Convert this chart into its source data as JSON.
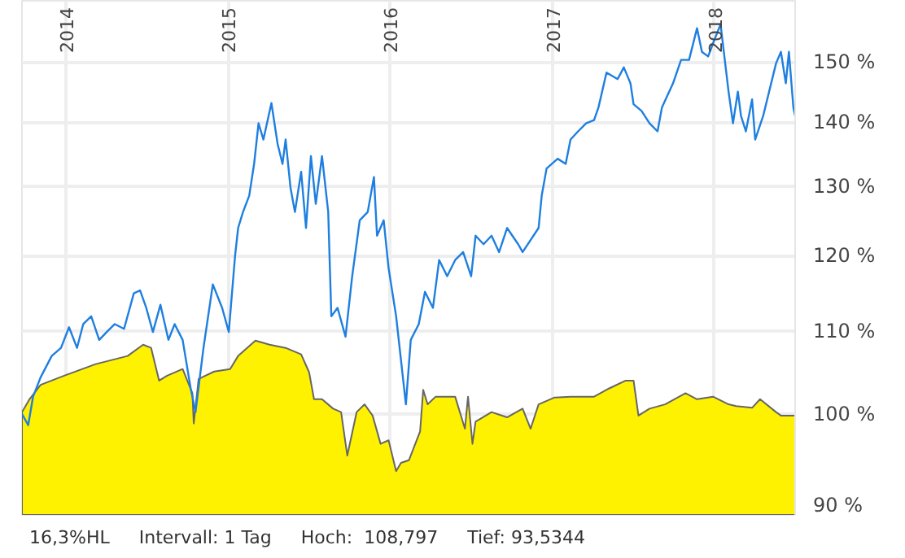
{
  "chart_data": {
    "type": "area",
    "xlim": [
      "2013-09-24",
      "2018-07-02"
    ],
    "xticks": [
      "2014",
      "2015",
      "2016",
      "2017",
      "2018"
    ],
    "ylim": [
      89,
      161
    ],
    "log": true,
    "grid": true,
    "yticks": [
      {
        "value": 90,
        "label": "90 %"
      },
      {
        "value": 100,
        "label": "100 %"
      },
      {
        "value": 110,
        "label": "110 %"
      },
      {
        "value": 120,
        "label": "120 %"
      },
      {
        "value": 130,
        "label": "130 %"
      },
      {
        "value": 140,
        "label": "140 %"
      },
      {
        "value": 150,
        "label": "150 %"
      }
    ],
    "series": [
      {
        "color": "#fff200",
        "x": [
          "2013-09-24",
          "2013-10-11",
          "2013-11-05",
          "2013-12-28",
          "2014-03-09",
          "2014-05-20",
          "2014-06-24",
          "2014-07-12",
          "2014-07-30",
          "2014-08-17",
          "2014-09-21",
          "2014-10-13",
          "2014-10-16",
          "2014-10-27",
          "2014-12-01",
          "2015-01-06",
          "2015-01-24",
          "2015-03-04",
          "2015-04-05",
          "2015-05-11",
          "2015-06-15",
          "2015-07-03",
          "2015-07-14",
          "2015-08-01",
          "2015-08-26",
          "2015-09-13",
          "2015-09-27",
          "2015-10-18",
          "2015-11-05",
          "2015-11-23",
          "2015-12-11",
          "2015-12-29",
          "2016-01-15",
          "2016-01-26",
          "2016-02-13",
          "2016-03-09",
          "2016-03-16",
          "2016-03-26",
          "2016-04-13",
          "2016-05-27",
          "2016-06-18",
          "2016-06-25",
          "2016-07-05",
          "2016-07-12",
          "2016-08-17",
          "2016-09-21",
          "2016-10-26",
          "2016-11-13",
          "2016-12-01",
          "2017-01-06",
          "2017-02-11",
          "2017-04-05",
          "2017-05-10",
          "2017-06-15",
          "2017-07-03",
          "2017-07-14",
          "2017-08-08",
          "2017-09-12",
          "2017-10-28",
          "2017-11-23",
          "2017-12-29",
          "2018-02-02",
          "2018-02-19",
          "2018-03-27",
          "2018-04-14",
          "2018-05-20",
          "2018-05-31",
          "2018-07-02"
        ],
        "values": [
          100.2,
          101.7,
          103.4,
          104.5,
          105.9,
          106.9,
          108.3,
          107.9,
          103.9,
          104.5,
          105.3,
          102.4,
          98.9,
          104.1,
          105,
          105.3,
          106.9,
          108.8,
          108.3,
          107.9,
          107.1,
          104.9,
          101.7,
          101.7,
          100.6,
          100.2,
          95.3,
          100.2,
          101.1,
          99.8,
          96.6,
          97,
          93.6,
          94.5,
          94.8,
          98,
          102.8,
          101.1,
          102,
          102,
          98.3,
          102,
          96.6,
          99.1,
          100.2,
          99.6,
          100.6,
          98.3,
          101.1,
          101.9,
          102,
          102,
          103,
          103.9,
          103.9,
          99.8,
          100.6,
          101.1,
          102.4,
          101.7,
          102,
          101.1,
          100.9,
          100.7,
          101.7,
          100.2,
          99.8,
          99.8
        ]
      },
      {
        "type": "line",
        "color": "#1e7fe0",
        "x": [
          "2013-09-24",
          "2013-10-08",
          "2013-10-19",
          "2013-11-05",
          "2013-11-30",
          "2013-12-21",
          "2014-01-08",
          "2014-01-26",
          "2014-02-09",
          "2014-02-27",
          "2014-03-17",
          "2014-04-03",
          "2014-04-21",
          "2014-05-12",
          "2014-06-03",
          "2014-06-17",
          "2014-07-01",
          "2014-07-16",
          "2014-08-02",
          "2014-08-20",
          "2014-09-03",
          "2014-09-21",
          "2014-10-09",
          "2014-10-20",
          "2014-11-07",
          "2014-11-28",
          "2014-12-19",
          "2015-01-03",
          "2015-01-17",
          "2015-01-24",
          "2015-02-04",
          "2015-02-18",
          "2015-03-01",
          "2015-03-11",
          "2015-03-22",
          "2015-04-09",
          "2015-04-23",
          "2015-05-04",
          "2015-05-11",
          "2015-05-22",
          "2015-06-01",
          "2015-06-15",
          "2015-06-26",
          "2015-07-07",
          "2015-07-18",
          "2015-08-01",
          "2015-08-15",
          "2015-08-22",
          "2015-09-05",
          "2015-09-23",
          "2015-10-08",
          "2015-10-25",
          "2015-11-12",
          "2015-11-26",
          "2015-12-03",
          "2015-12-18",
          "2015-12-29",
          "2016-01-15",
          "2016-02-06",
          "2016-02-17",
          "2016-03-06",
          "2016-03-20",
          "2016-04-07",
          "2016-04-21",
          "2016-05-09",
          "2016-05-27",
          "2016-06-14",
          "2016-07-02",
          "2016-07-12",
          "2016-07-30",
          "2016-08-17",
          "2016-09-03",
          "2016-09-21",
          "2016-10-16",
          "2016-10-26",
          "2016-12-01",
          "2016-12-08",
          "2016-12-19",
          "2017-01-13",
          "2017-01-31",
          "2017-02-11",
          "2017-02-28",
          "2017-03-18",
          "2017-04-05",
          "2017-04-15",
          "2017-05-03",
          "2017-05-28",
          "2017-06-11",
          "2017-06-26",
          "2017-07-03",
          "2017-07-21",
          "2017-08-08",
          "2017-08-26",
          "2017-09-05",
          "2017-09-30",
          "2017-10-18",
          "2017-11-05",
          "2017-11-23",
          "2017-12-04",
          "2017-12-18",
          "2017-12-29",
          "2018-01-15",
          "2018-02-02",
          "2018-02-12",
          "2018-02-23",
          "2018-03-02",
          "2018-03-13",
          "2018-03-27",
          "2018-04-03",
          "2018-04-21",
          "2018-05-09",
          "2018-05-20",
          "2018-05-31",
          "2018-06-11",
          "2018-06-18",
          "2018-06-28",
          "2018-07-02"
        ],
        "values": [
          100,
          98.7,
          102,
          104.3,
          106.9,
          107.9,
          110.5,
          107.9,
          110.9,
          111.9,
          108.9,
          109.9,
          110.9,
          110.3,
          114.9,
          115.3,
          113,
          109.9,
          113.4,
          108.9,
          110.9,
          108.9,
          103,
          100.2,
          107.9,
          116.1,
          113,
          109.9,
          119.9,
          123.9,
          126.2,
          128.6,
          133.4,
          139.8,
          137.2,
          143.1,
          136.5,
          133.4,
          137.2,
          129.8,
          126.2,
          132.2,
          123.9,
          134.6,
          127.4,
          134.6,
          126.2,
          111.9,
          113,
          109.3,
          117.2,
          125,
          126.2,
          131.4,
          122.8,
          125,
          118.3,
          111.9,
          101.1,
          108.9,
          110.9,
          115.1,
          113,
          119.4,
          117.2,
          119.4,
          120.5,
          117.2,
          122.8,
          121.6,
          122.8,
          120.5,
          123.9,
          121.6,
          120.5,
          123.9,
          128.6,
          132.7,
          134.2,
          133.4,
          137.2,
          138.5,
          139.8,
          140.3,
          142.4,
          148.2,
          147.1,
          149.1,
          146.4,
          142.9,
          141.8,
          139.8,
          138.5,
          142.4,
          146.4,
          150.4,
          150.4,
          156,
          151.8,
          151,
          153.3,
          156.7,
          145,
          139.8,
          145,
          141,
          138.5,
          143.7,
          137.2,
          141,
          146.4,
          149.8,
          151.8,
          146.4,
          151.8,
          142.4,
          141
        ]
      }
    ],
    "annotations": [
      "16,3%HL",
      "Intervall: 1 Tag",
      "Hoch:  108,797",
      "Tief: 93,5344"
    ]
  }
}
